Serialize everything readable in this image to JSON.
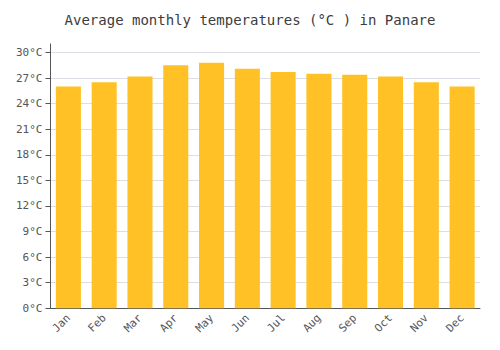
{
  "chart_data": {
    "type": "bar",
    "title": "Average monthly temperatures (°C ) in Panare",
    "categories": [
      "Jan",
      "Feb",
      "Mar",
      "Apr",
      "May",
      "Jun",
      "Jul",
      "Aug",
      "Sep",
      "Oct",
      "Nov",
      "Dec"
    ],
    "values": [
      26.0,
      26.5,
      27.2,
      28.5,
      28.8,
      28.1,
      27.7,
      27.5,
      27.4,
      27.2,
      26.5,
      26.0
    ],
    "color": "#FFC125",
    "ylim": [
      0,
      31
    ],
    "yticks": [
      {
        "value": 0,
        "label": "0°C"
      },
      {
        "value": 3,
        "label": "3°C"
      },
      {
        "value": 6,
        "label": "6°C"
      },
      {
        "value": 9,
        "label": "9°C"
      },
      {
        "value": 12,
        "label": "12°C"
      },
      {
        "value": 15,
        "label": "15°C"
      },
      {
        "value": 18,
        "label": "18°C"
      },
      {
        "value": 21,
        "label": "21°C"
      },
      {
        "value": 24,
        "label": "24°C"
      },
      {
        "value": 27,
        "label": "27°C"
      },
      {
        "value": 30,
        "label": "30°C"
      }
    ],
    "grid": true
  }
}
